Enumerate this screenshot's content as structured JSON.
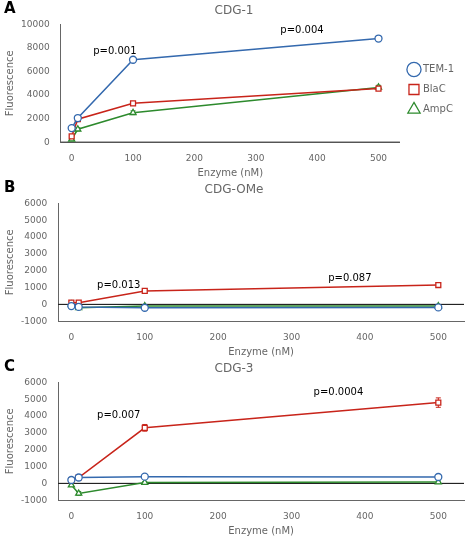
{
  "chart_data": [
    {
      "type": "line",
      "label": "A",
      "title": "CDG-1",
      "xlabel": "Enzyme (nM)",
      "ylabel": "Fluorescence",
      "x": [
        0,
        10,
        100,
        500
      ],
      "series": [
        {
          "name": "TEM-1",
          "color": "#3469ae",
          "marker": "circle",
          "values": [
            1200,
            2050,
            7000,
            8800
          ],
          "errors": [
            100,
            120,
            180,
            220
          ]
        },
        {
          "name": "BlaC",
          "color": "#c8241a",
          "marker": "square",
          "values": [
            500,
            1950,
            3300,
            4550
          ],
          "errors": [
            80,
            180,
            150,
            160
          ]
        },
        {
          "name": "AmpC",
          "color": "#2d8a2d",
          "marker": "triangle",
          "values": [
            250,
            1100,
            2500,
            4650
          ],
          "errors": [
            60,
            130,
            160,
            180
          ]
        }
      ],
      "xlim": [
        -18,
        535
      ],
      "xticks": [
        0,
        100,
        200,
        300,
        400,
        500
      ],
      "ylim": [
        0,
        10000
      ],
      "yticks": [
        0,
        2000,
        4000,
        6000,
        8000,
        10000
      ],
      "grid": false,
      "legend": "right",
      "hline": 0,
      "annotations": [
        {
          "text": "p=0.001",
          "x": 35,
          "y": 7500
        },
        {
          "text": "p=0.004",
          "x": 340,
          "y": 9300
        }
      ]
    },
    {
      "type": "line",
      "label": "B",
      "title": "CDG-OMe",
      "xlabel": "Enzyme (nM)",
      "ylabel": "Fluorescence",
      "x": [
        0,
        10,
        100,
        500
      ],
      "series": [
        {
          "name": "TEM-1",
          "color": "#3469ae",
          "marker": "circle",
          "values": [
            -100,
            -150,
            -200,
            -180
          ],
          "errors": [
            50,
            50,
            50,
            50
          ]
        },
        {
          "name": "BlaC",
          "color": "#c8241a",
          "marker": "square",
          "values": [
            100,
            100,
            800,
            1150
          ],
          "errors": [
            50,
            80,
            100,
            120
          ]
        },
        {
          "name": "AmpC",
          "color": "#2d8a2d",
          "marker": "triangle",
          "values": [
            0,
            -200,
            -100,
            -100
          ],
          "errors": [
            50,
            80,
            50,
            50
          ]
        }
      ],
      "xlim": [
        -18,
        535
      ],
      "xticks": [
        0,
        100,
        200,
        300,
        400,
        500
      ],
      "ylim": [
        -1000,
        6000
      ],
      "yticks": [
        -1000,
        0,
        1000,
        2000,
        3000,
        4000,
        5000,
        6000
      ],
      "grid": false,
      "hline": 0,
      "annotations": [
        {
          "text": "p=0.013",
          "x": 35,
          "y": 960
        },
        {
          "text": "p=0.087",
          "x": 350,
          "y": 1380
        }
      ]
    },
    {
      "type": "line",
      "label": "C",
      "title": "CDG-3",
      "xlabel": "Enzyme (nM)",
      "ylabel": "Fluorescence",
      "x": [
        0,
        10,
        100,
        500
      ],
      "series": [
        {
          "name": "TEM-1",
          "color": "#3469ae",
          "marker": "circle",
          "values": [
            200,
            350,
            400,
            380
          ],
          "errors": [
            80,
            80,
            80,
            80
          ]
        },
        {
          "name": "BlaC",
          "color": "#c8241a",
          "marker": "square",
          "values": [
            200,
            350,
            3300,
            4800
          ],
          "errors": [
            80,
            100,
            200,
            280
          ]
        },
        {
          "name": "AmpC",
          "color": "#2d8a2d",
          "marker": "triangle",
          "values": [
            -100,
            -600,
            50,
            80
          ],
          "errors": [
            80,
            120,
            60,
            60
          ]
        }
      ],
      "xlim": [
        -18,
        535
      ],
      "xticks": [
        0,
        100,
        200,
        300,
        400,
        500
      ],
      "ylim": [
        -1000,
        6000
      ],
      "yticks": [
        -1000,
        0,
        1000,
        2000,
        3000,
        4000,
        5000,
        6000
      ],
      "grid": false,
      "hline": 0,
      "annotations": [
        {
          "text": "p=0.007",
          "x": 35,
          "y": 3900
        },
        {
          "text": "p=0.0004",
          "x": 330,
          "y": 5250
        }
      ]
    }
  ]
}
